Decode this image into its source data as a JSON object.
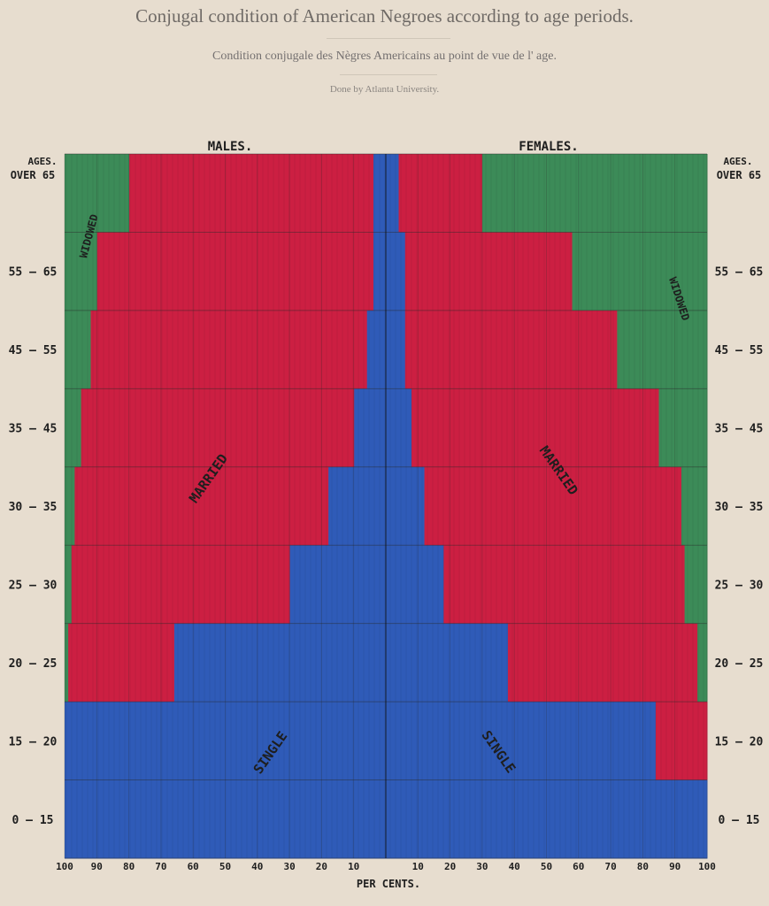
{
  "header": {
    "title": "Conjugal condition of American Negroes according to age periods.",
    "subtitle": "Condition conjugale des Nègres Americains au point de vue de l' age.",
    "credit": "Done by Atlanta University."
  },
  "colors": {
    "single": "#2f5bb8",
    "married": "#cc1f42",
    "widowed": "#3c8b58",
    "background": "#e7ddcf"
  },
  "chart_data": {
    "type": "bar",
    "orientation": "horizontal-stacked-mirrored",
    "panels": {
      "left": "MALES.",
      "right": "FEMALES."
    },
    "age_heading": "AGES.",
    "categories": [
      "OVER 65",
      "55-65",
      "45-55",
      "35-45",
      "30-35",
      "25-30",
      "20-25",
      "15-20",
      "0-15"
    ],
    "category_labels_left": [
      "OVER 65",
      "55 – 65",
      "45 – 55",
      "35 – 45",
      "30 – 35",
      "25 – 30",
      "20 – 25",
      "15 – 20",
      "0 – 15"
    ],
    "category_labels_right": [
      "OVER 65",
      "55 – 65",
      "45 – 55",
      "35 – 45",
      "30 – 35",
      "25 – 30",
      "20 – 25",
      "15 – 20",
      "0 – 15"
    ],
    "males": {
      "series": [
        {
          "name": "SINGLE",
          "values": [
            4,
            4,
            6,
            10,
            18,
            30,
            66,
            100,
            100
          ]
        },
        {
          "name": "MARRIED",
          "values": [
            76,
            86,
            86,
            85,
            79,
            68,
            33,
            0,
            0
          ]
        },
        {
          "name": "WIDOWED",
          "values": [
            20,
            10,
            8,
            5,
            3,
            2,
            1,
            0,
            0
          ]
        }
      ]
    },
    "females": {
      "series": [
        {
          "name": "SINGLE",
          "values": [
            4,
            6,
            6,
            8,
            12,
            18,
            38,
            84,
            100
          ]
        },
        {
          "name": "MARRIED",
          "values": [
            26,
            52,
            66,
            77,
            80,
            75,
            59,
            16,
            0
          ]
        },
        {
          "name": "WIDOWED",
          "values": [
            70,
            42,
            28,
            15,
            8,
            7,
            3,
            0,
            0
          ]
        }
      ]
    },
    "xticks_left": [
      "100",
      "90",
      "80",
      "70",
      "60",
      "50",
      "40",
      "30",
      "20",
      "10"
    ],
    "xticks_right": [
      "10",
      "20",
      "30",
      "40",
      "50",
      "60",
      "70",
      "80",
      "90",
      "100"
    ],
    "xlabel": "PER CENTS.",
    "xlim": [
      0,
      100
    ],
    "annotations": {
      "male_widowed": "WIDOWED",
      "male_married": "MARRIED",
      "male_single": "SINGLE",
      "female_widowed": "WIDOWED",
      "female_married": "MARRIED",
      "female_single": "SINGLE"
    }
  }
}
